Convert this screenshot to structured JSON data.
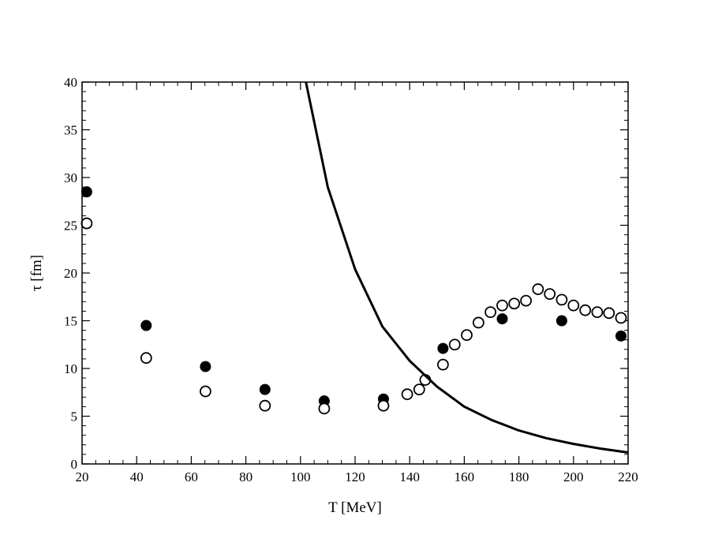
{
  "chart_data": {
    "type": "scatter",
    "title": "",
    "xlabel": "T [MeV]",
    "ylabel": "τ [fm]",
    "xlim": [
      20,
      220
    ],
    "ylim": [
      0,
      40
    ],
    "x_ticks": [
      20,
      40,
      60,
      80,
      100,
      120,
      140,
      160,
      180,
      200,
      220
    ],
    "y_ticks": [
      0,
      5,
      10,
      15,
      20,
      25,
      30,
      35,
      40
    ],
    "grid": false,
    "legend": "none",
    "series": [
      {
        "marker": "filled-circle",
        "color": "#000000",
        "points": [
          [
            21.7,
            28.5
          ],
          [
            43.5,
            14.5
          ],
          [
            65.2,
            10.2
          ],
          [
            87.0,
            7.8
          ],
          [
            108.7,
            6.6
          ],
          [
            130.4,
            6.8
          ],
          [
            152.2,
            12.1
          ],
          [
            173.9,
            15.2
          ],
          [
            195.7,
            15.0
          ],
          [
            217.4,
            13.4
          ]
        ]
      },
      {
        "marker": "open-circle",
        "color": "#000000",
        "points": [
          [
            21.7,
            25.2
          ],
          [
            43.5,
            11.1
          ],
          [
            65.2,
            7.6
          ],
          [
            87.0,
            6.1
          ],
          [
            108.7,
            5.8
          ],
          [
            130.4,
            6.1
          ],
          [
            139.1,
            7.3
          ],
          [
            143.5,
            7.8
          ],
          [
            145.7,
            8.8
          ],
          [
            152.2,
            10.4
          ],
          [
            156.5,
            12.5
          ],
          [
            160.9,
            13.5
          ],
          [
            165.2,
            14.8
          ],
          [
            169.6,
            15.9
          ],
          [
            173.9,
            16.6
          ],
          [
            178.3,
            16.8
          ],
          [
            182.6,
            17.1
          ],
          [
            187.0,
            18.3
          ],
          [
            191.3,
            17.8
          ],
          [
            195.7,
            17.2
          ],
          [
            200.0,
            16.6
          ],
          [
            204.3,
            16.1
          ],
          [
            208.7,
            15.9
          ],
          [
            213.0,
            15.8
          ],
          [
            217.4,
            15.3
          ]
        ]
      },
      {
        "marker": "line",
        "color": "#000000",
        "points": [
          [
            102.0,
            40.0
          ],
          [
            110.0,
            29.0
          ],
          [
            120.0,
            20.4
          ],
          [
            130.0,
            14.4
          ],
          [
            140.0,
            10.8
          ],
          [
            150.0,
            8.1
          ],
          [
            160.0,
            6.0
          ],
          [
            170.0,
            4.6
          ],
          [
            180.0,
            3.5
          ],
          [
            190.0,
            2.7
          ],
          [
            200.0,
            2.1
          ],
          [
            210.0,
            1.6
          ],
          [
            220.0,
            1.2
          ]
        ]
      }
    ]
  }
}
